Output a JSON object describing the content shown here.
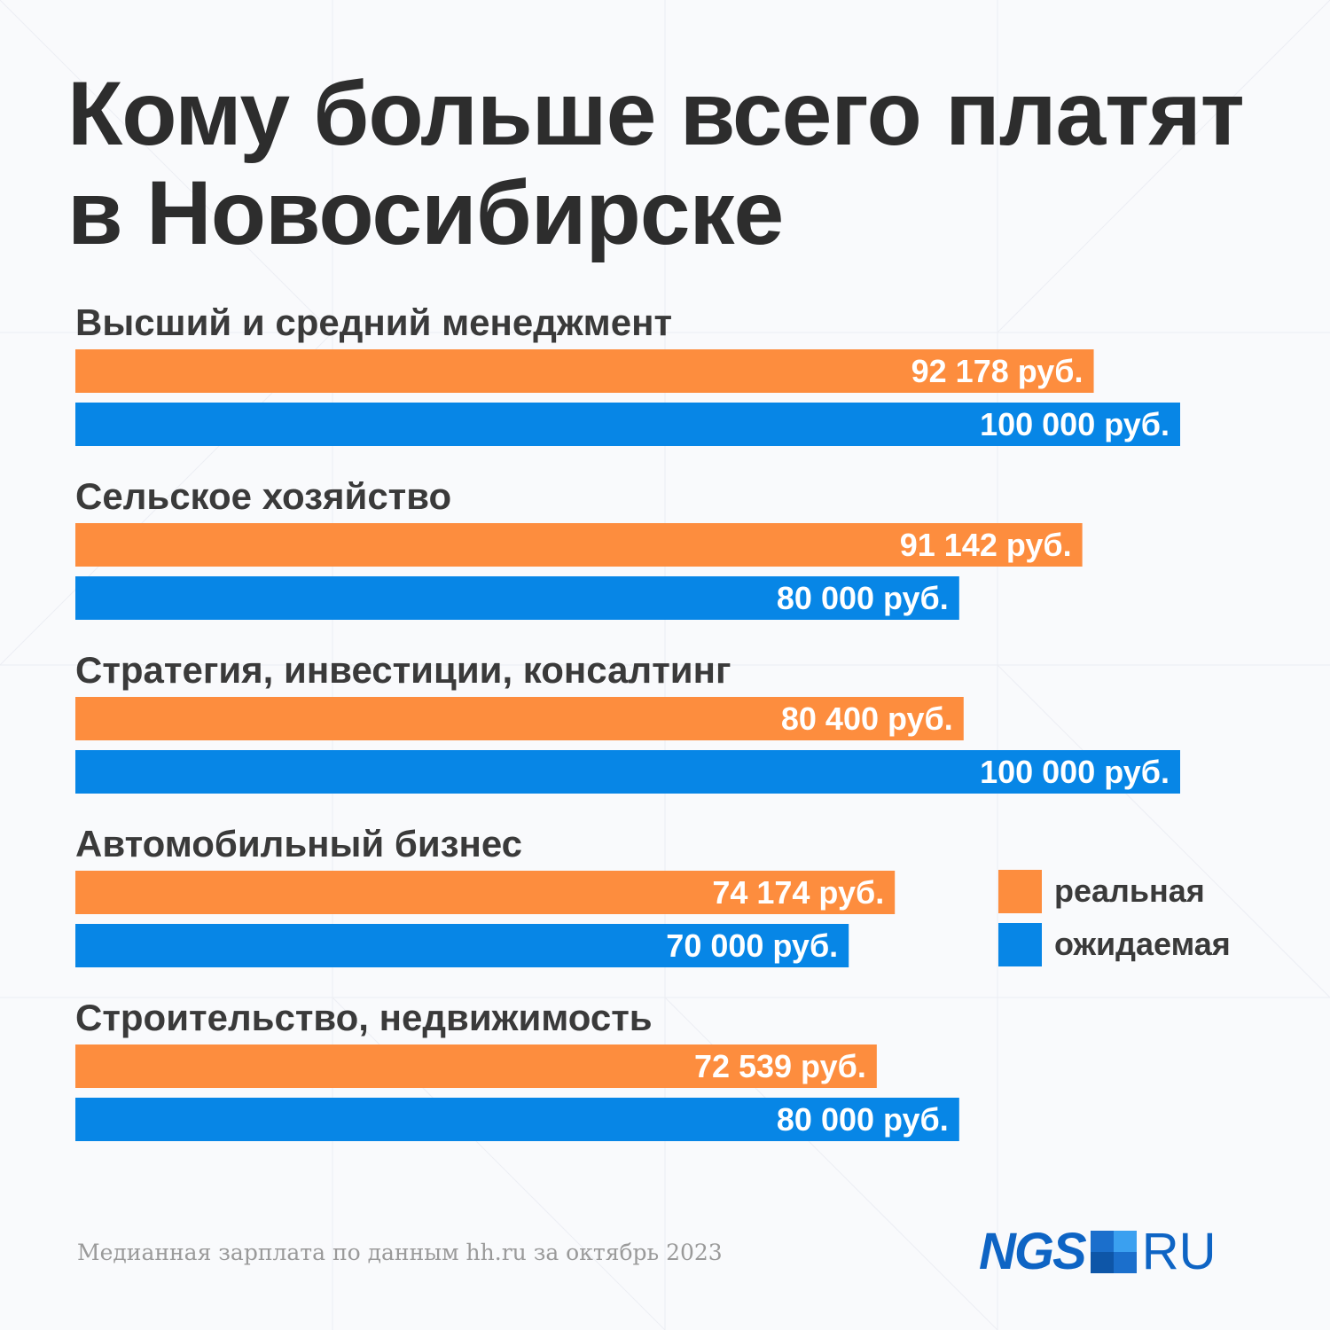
{
  "title_lines": [
    "Кому больше всего платят",
    "в Новосибирске"
  ],
  "chart_data": {
    "type": "bar",
    "orientation": "horizontal",
    "categories": [
      "Высший и средний менеджмент",
      "Сельское хозяйство",
      "Стратегия, инвестиции, консалтинг",
      "Автомобильный бизнес",
      "Строительство, недвижимость"
    ],
    "series": [
      {
        "name": "реальная",
        "color": "#fd8d3e",
        "values": [
          92178,
          91142,
          80400,
          74174,
          72539
        ],
        "labels": [
          "92 178 руб.",
          "91 142 руб.",
          "80 400 руб.",
          "74 174 руб.",
          "72 539 руб."
        ]
      },
      {
        "name": "ожидаемая",
        "color": "#0786e6",
        "values": [
          100000,
          80000,
          100000,
          70000,
          80000
        ],
        "labels": [
          "100 000 руб.",
          "80 000 руб.",
          "100 000 руб.",
          "70 000 руб.",
          "80 000 руб."
        ]
      }
    ],
    "legend_position": "right",
    "grid": false
  },
  "legend": {
    "items": [
      "реальная",
      "ожидаемая"
    ]
  },
  "footnote": "Медианная зарплата по данным hh.ru за октябрь 2023",
  "logo": {
    "left": "NGS",
    "right": "RU"
  }
}
